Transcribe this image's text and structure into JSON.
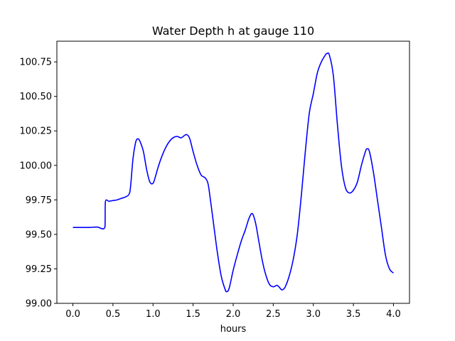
{
  "chart_data": {
    "type": "line",
    "title": "Water Depth h at gauge 110",
    "xlabel": "hours",
    "ylabel": "",
    "xlim": [
      -0.2,
      4.2
    ],
    "ylim": [
      99.0,
      100.9
    ],
    "xticks": [
      0.0,
      0.5,
      1.0,
      1.5,
      2.0,
      2.5,
      3.0,
      3.5,
      4.0
    ],
    "xtick_labels": [
      "0.0",
      "0.5",
      "1.0",
      "1.5",
      "2.0",
      "2.5",
      "3.0",
      "3.5",
      "4.0"
    ],
    "yticks": [
      99.0,
      99.25,
      99.5,
      99.75,
      100.0,
      100.25,
      100.5,
      100.75
    ],
    "ytick_labels": [
      "99.00",
      "99.25",
      "99.50",
      "99.75",
      "100.00",
      "100.25",
      "100.50",
      "100.75"
    ],
    "grid": false,
    "series": [
      {
        "name": "",
        "color": "#0000ff",
        "x": [
          0.0,
          0.1,
          0.2,
          0.3,
          0.4,
          0.405,
          0.45,
          0.5,
          0.55,
          0.6,
          0.65,
          0.7,
          0.72,
          0.75,
          0.78,
          0.8,
          0.82,
          0.84,
          0.88,
          0.92,
          0.96,
          1.0,
          1.03,
          1.06,
          1.1,
          1.15,
          1.2,
          1.25,
          1.3,
          1.35,
          1.4,
          1.43,
          1.46,
          1.5,
          1.55,
          1.6,
          1.65,
          1.68,
          1.7,
          1.75,
          1.8,
          1.85,
          1.9,
          1.92,
          1.95,
          2.0,
          2.05,
          2.1,
          2.15,
          2.2,
          2.24,
          2.28,
          2.32,
          2.36,
          2.4,
          2.45,
          2.5,
          2.55,
          2.6,
          2.62,
          2.65,
          2.7,
          2.75,
          2.8,
          2.85,
          2.9,
          2.95,
          3.0,
          3.05,
          3.1,
          3.15,
          3.17,
          3.2,
          3.25,
          3.3,
          3.35,
          3.4,
          3.45,
          3.5,
          3.55,
          3.6,
          3.65,
          3.67,
          3.7,
          3.75,
          3.8,
          3.85,
          3.9,
          3.95,
          4.0
        ],
        "y": [
          99.55,
          99.55,
          99.55,
          99.553,
          99.553,
          99.735,
          99.74,
          99.745,
          99.75,
          99.76,
          99.77,
          99.79,
          99.85,
          100.05,
          100.16,
          100.19,
          100.19,
          100.17,
          100.1,
          99.97,
          99.88,
          99.87,
          99.92,
          99.98,
          100.05,
          100.12,
          100.17,
          100.2,
          100.21,
          100.2,
          100.22,
          100.22,
          100.19,
          100.1,
          100.0,
          99.93,
          99.91,
          99.88,
          99.82,
          99.6,
          99.38,
          99.2,
          99.1,
          99.085,
          99.11,
          99.24,
          99.35,
          99.45,
          99.53,
          99.62,
          99.65,
          99.58,
          99.45,
          99.32,
          99.22,
          99.14,
          99.12,
          99.13,
          99.1,
          99.1,
          99.12,
          99.2,
          99.32,
          99.5,
          99.78,
          100.1,
          100.38,
          100.52,
          100.67,
          100.75,
          100.8,
          100.81,
          100.8,
          100.65,
          100.3,
          100.0,
          99.84,
          99.8,
          99.82,
          99.88,
          100.0,
          100.1,
          100.12,
          100.1,
          99.95,
          99.75,
          99.55,
          99.35,
          99.25,
          99.22
        ]
      }
    ]
  }
}
